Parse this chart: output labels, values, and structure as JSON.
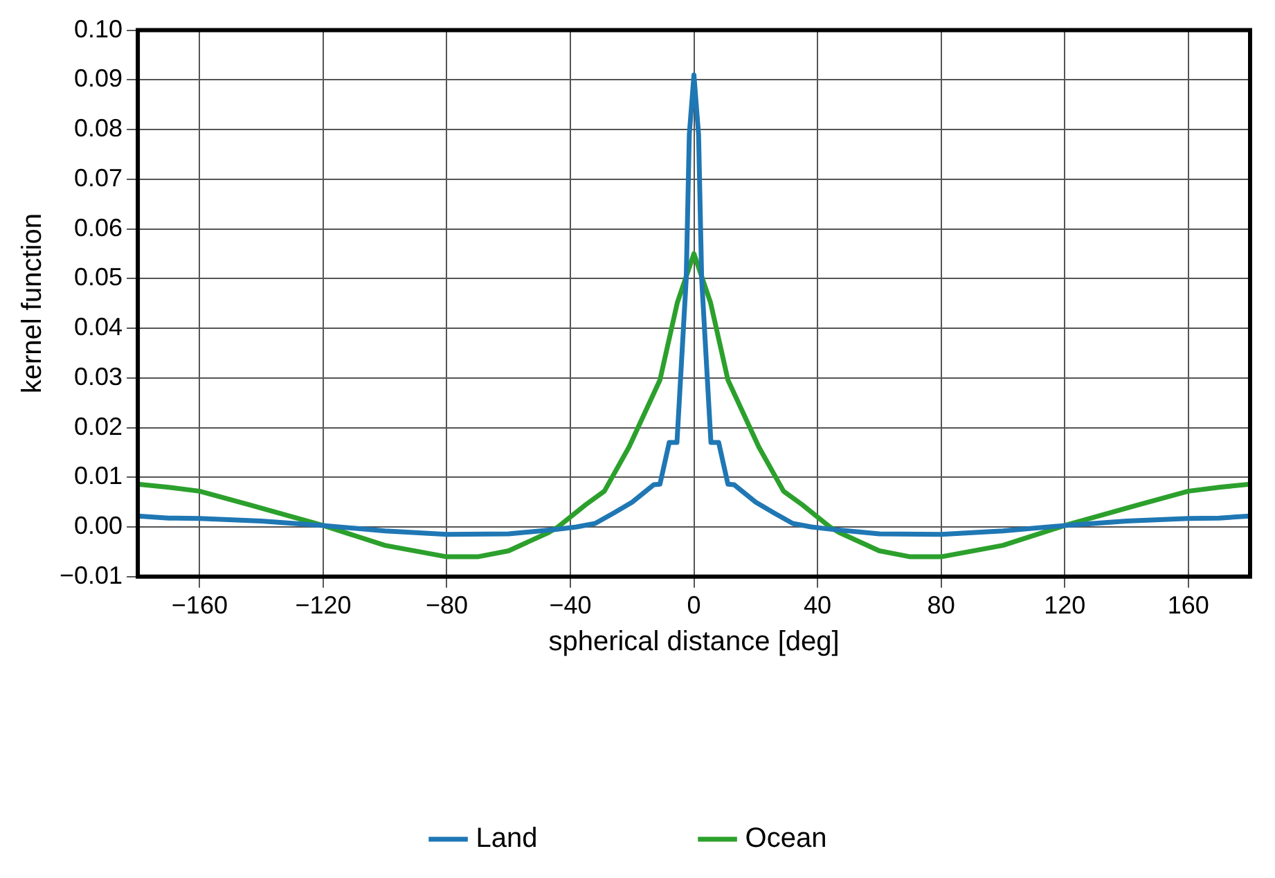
{
  "chart_data": {
    "type": "line",
    "xlabel": "spherical distance [deg]",
    "ylabel": "kernel function",
    "xlim": [
      -180,
      180
    ],
    "xticks": [
      -160,
      -120,
      -80,
      -40,
      0,
      40,
      80,
      120,
      160
    ],
    "ylim": [
      -0.01,
      0.1
    ],
    "yticks": [
      {
        "value": -0.01,
        "label": "−0.01"
      },
      {
        "value": 0,
        "label": "0.00"
      },
      {
        "value": 0.01,
        "label": "0.01"
      },
      {
        "value": 0.02,
        "label": "0.02"
      },
      {
        "value": 0.03,
        "label": "0.03"
      },
      {
        "value": 0.04,
        "label": "0.04"
      },
      {
        "value": 0.05,
        "label": "0.05"
      },
      {
        "value": 0.06,
        "label": "0.06"
      },
      {
        "value": 0.07,
        "label": "0.07"
      },
      {
        "value": 0.08,
        "label": "0.08"
      },
      {
        "value": 0.09,
        "label": "0.09"
      },
      {
        "value": 0.1,
        "label": "0.10"
      }
    ],
    "grid": true,
    "legend": "bottom",
    "marker": "none",
    "line_style": "solid",
    "series": [
      {
        "name": "Land",
        "color": "#1f77b4",
        "x": [
          -180,
          -170,
          -160,
          -140,
          -120,
          -100,
          -80,
          -60,
          -45,
          -38,
          -32,
          -26,
          -20,
          -13,
          -11,
          -8,
          -5.5,
          -2.5,
          -1.5,
          0,
          1.5,
          2.5,
          5.5,
          8,
          11,
          13,
          20,
          26,
          32,
          38,
          45,
          60,
          80,
          100,
          120,
          140,
          160,
          170,
          180
        ],
        "values": [
          0.0022,
          0.0018,
          0.0017,
          0.0012,
          0.0003,
          -0.0008,
          -0.0015,
          -0.0014,
          -0.0005,
          0,
          0.0007,
          0.0028,
          0.005,
          0.0085,
          0.0086,
          0.017,
          0.017,
          0.05,
          0.079,
          0.091,
          0.079,
          0.05,
          0.017,
          0.017,
          0.0086,
          0.0085,
          0.005,
          0.0028,
          0.0007,
          0,
          -0.0005,
          -0.0014,
          -0.0015,
          -0.0008,
          0.0003,
          0.0012,
          0.0017,
          0.0018,
          0.0022
        ]
      },
      {
        "name": "Ocean",
        "color": "#2ca02c",
        "x": [
          -180,
          -170,
          -160,
          -144,
          -120,
          -100,
          -80,
          -70,
          -60,
          -47,
          -44,
          -35,
          -29,
          -21,
          -11,
          -5.4,
          0,
          5.4,
          11,
          21,
          29,
          35,
          44,
          47,
          60,
          70,
          80,
          100,
          120,
          144,
          160,
          170,
          180
        ],
        "values": [
          0.0086,
          0.008,
          0.0072,
          0.0045,
          0.0003,
          -0.0037,
          -0.006,
          -0.006,
          -0.0048,
          -0.0011,
          0,
          0.0045,
          0.0072,
          0.0161,
          0.0296,
          0.0451,
          0.055,
          0.0451,
          0.0296,
          0.0161,
          0.0072,
          0.0045,
          0,
          -0.0011,
          -0.0048,
          -0.006,
          -0.006,
          -0.0037,
          0.0003,
          0.0045,
          0.0072,
          0.008,
          0.0086
        ]
      }
    ]
  }
}
